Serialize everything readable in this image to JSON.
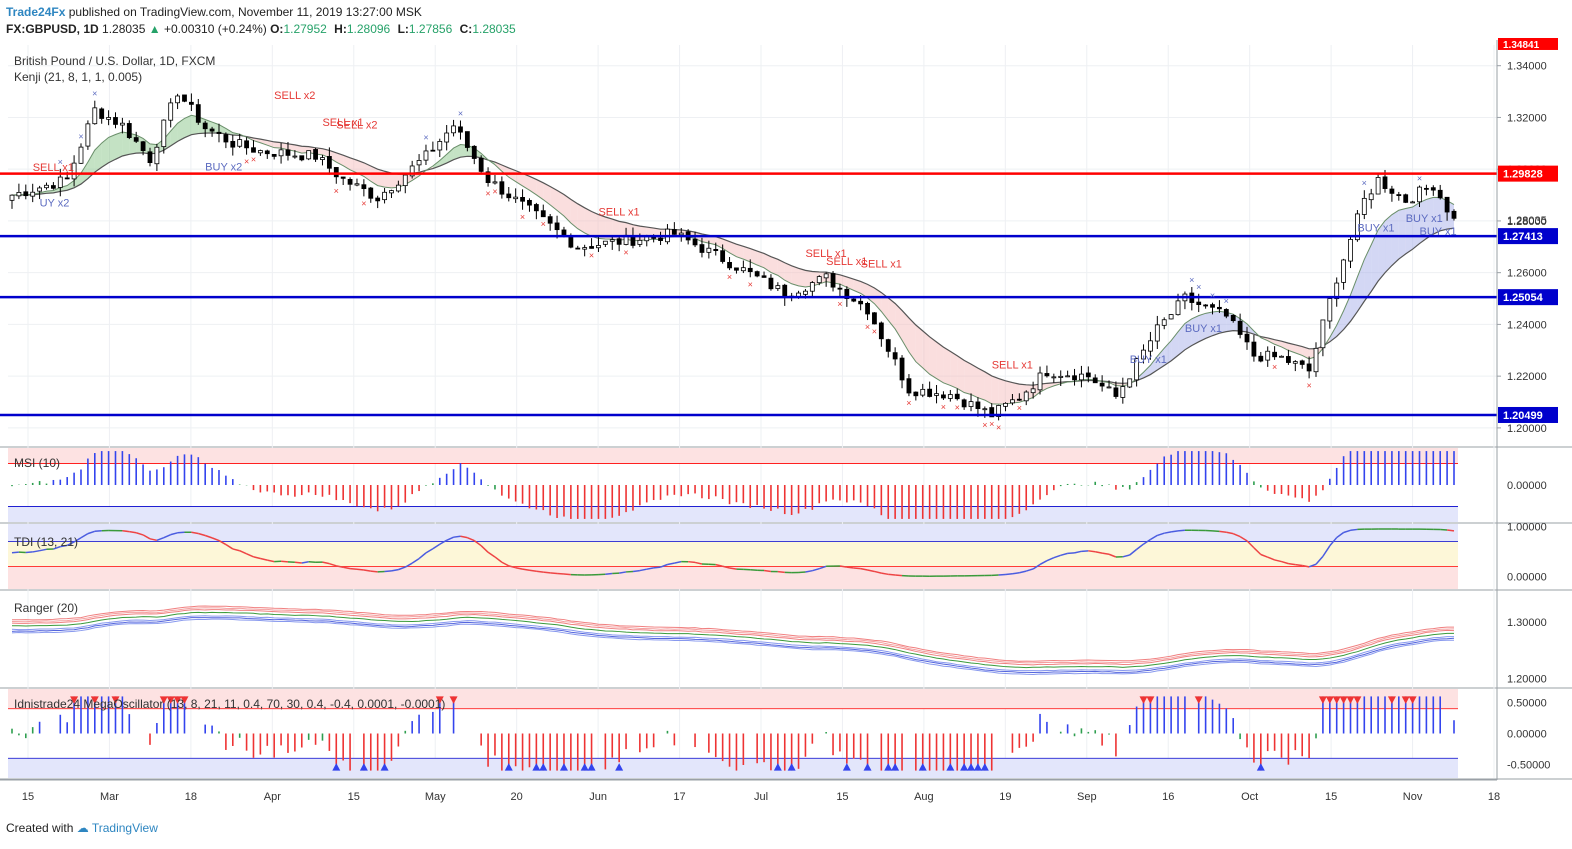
{
  "header": {
    "publisher": "Trade24Fx",
    "published_text": "published on TradingView.com, November 11, 2019 13:27:00 MSK",
    "symbol": "FX:GBPUSD, 1D",
    "last": "1.28035",
    "change": "+0.00310 (+0.24%)",
    "o_label": "O:",
    "o": "1.27952",
    "h_label": "H:",
    "h": "1.28096",
    "l_label": "L:",
    "l": "1.27856",
    "c_label": "C:",
    "c": "1.28035"
  },
  "footer": {
    "created_with": "Created with",
    "brand": "TradingView"
  },
  "colors": {
    "resistance": "#ff0000",
    "support": "#0000cc",
    "bull": "#ffffff",
    "bear": "#000000",
    "kenji_green": "#7cbf7c",
    "kenji_pink": "#f4b6b6",
    "kenji_blue": "#9ea7e6",
    "label_red": "#e53935",
    "label_blue": "#5c6bc0",
    "osc_blue": "#3344ee",
    "osc_red": "#ee3333"
  },
  "chart_data": [
    {
      "type": "candlestick",
      "title": "British Pound / U.S. Dollar, 1D, FXCM",
      "indicator": "Kenji (21, 8, 1, 1, 0.005)",
      "x_labels": [
        "15",
        "Mar",
        "18",
        "Apr",
        "15",
        "May",
        "20",
        "Jun",
        "17",
        "Jul",
        "15",
        "Aug",
        "19",
        "Sep",
        "16",
        "Oct",
        "15",
        "Nov",
        "18"
      ],
      "y_ticks": [
        "1.34000",
        "1.32000",
        "1.30000",
        "1.28000",
        "1.26000",
        "1.24000",
        "1.22000",
        "1.20000"
      ],
      "ylim": [
        1.193,
        1.348
      ],
      "last_price": "1.28035",
      "top_price_label": "1.34841",
      "levels": [
        {
          "value": 1.29828,
          "label": "1.29828",
          "kind": "resistance"
        },
        {
          "value": 1.27413,
          "label": "1.27413",
          "kind": "support"
        },
        {
          "value": 1.25054,
          "label": "1.25054",
          "kind": "support"
        },
        {
          "value": 1.20499,
          "label": "1.20499",
          "kind": "support"
        }
      ],
      "annotations": [
        {
          "text": "SELL x1",
          "kind": "sell",
          "i": 3,
          "y": 1.2993
        },
        {
          "text": "UY x2",
          "kind": "buy",
          "i": 4,
          "y": 1.2855
        },
        {
          "text": "BUY x2",
          "kind": "buy",
          "i": 28,
          "y": 1.2995
        },
        {
          "text": "SELL x2",
          "kind": "sell",
          "i": 38,
          "y": 1.3271
        },
        {
          "text": "SELL x1",
          "kind": "sell",
          "i": 45,
          "y": 1.3167
        },
        {
          "text": "SELL x2",
          "kind": "sell",
          "i": 47,
          "y": 1.3157
        },
        {
          "text": "SELL x1",
          "kind": "sell",
          "i": 85,
          "y": 1.282
        },
        {
          "text": "SELL x1",
          "kind": "sell",
          "i": 115,
          "y": 1.266
        },
        {
          "text": "SELL x1",
          "kind": "sell",
          "i": 118,
          "y": 1.263
        },
        {
          "text": "SELL x1",
          "kind": "sell",
          "i": 123,
          "y": 1.262
        },
        {
          "text": "SELL x1",
          "kind": "sell",
          "i": 142,
          "y": 1.223
        },
        {
          "text": "BUY x1",
          "kind": "buy",
          "i": 162,
          "y": 1.225
        },
        {
          "text": "BUY x1",
          "kind": "buy",
          "i": 170,
          "y": 1.237
        },
        {
          "text": "BUY x1",
          "kind": "buy",
          "i": 195,
          "y": 1.276
        },
        {
          "text": "BUY x1",
          "kind": "buy",
          "i": 202,
          "y": 1.2795
        },
        {
          "text": "BUY x1",
          "kind": "buy",
          "i": 204,
          "y": 1.2745
        }
      ]
    },
    {
      "type": "histogram",
      "title": "MSI (10)",
      "y_ticks": [
        "0.00000"
      ],
      "ylim": [
        -1.2,
        1.2
      ],
      "bands": [
        0.7,
        -0.7
      ]
    },
    {
      "type": "line",
      "title": "TDI (13, 21)",
      "y_ticks": [
        "1.00000",
        "0.00000"
      ],
      "ylim": [
        -0.25,
        1.05
      ],
      "bands": [
        0.7,
        0.2
      ]
    },
    {
      "type": "line",
      "title": "Ranger (20)",
      "y_ticks": [
        "1.30000",
        "1.20000"
      ],
      "ylim": [
        1.185,
        1.355
      ]
    },
    {
      "type": "histogram",
      "title": "Idnistrade24 MegaOscillator (13, 8, 21, 11, 0.4, 70, 30, 0.4, -0.4, 0.0001, -0.0001)",
      "y_ticks": [
        "0.50000",
        "0.00000",
        "-0.50000"
      ],
      "ylim": [
        -0.72,
        0.72
      ],
      "bands": [
        0.4,
        -0.4
      ]
    }
  ]
}
